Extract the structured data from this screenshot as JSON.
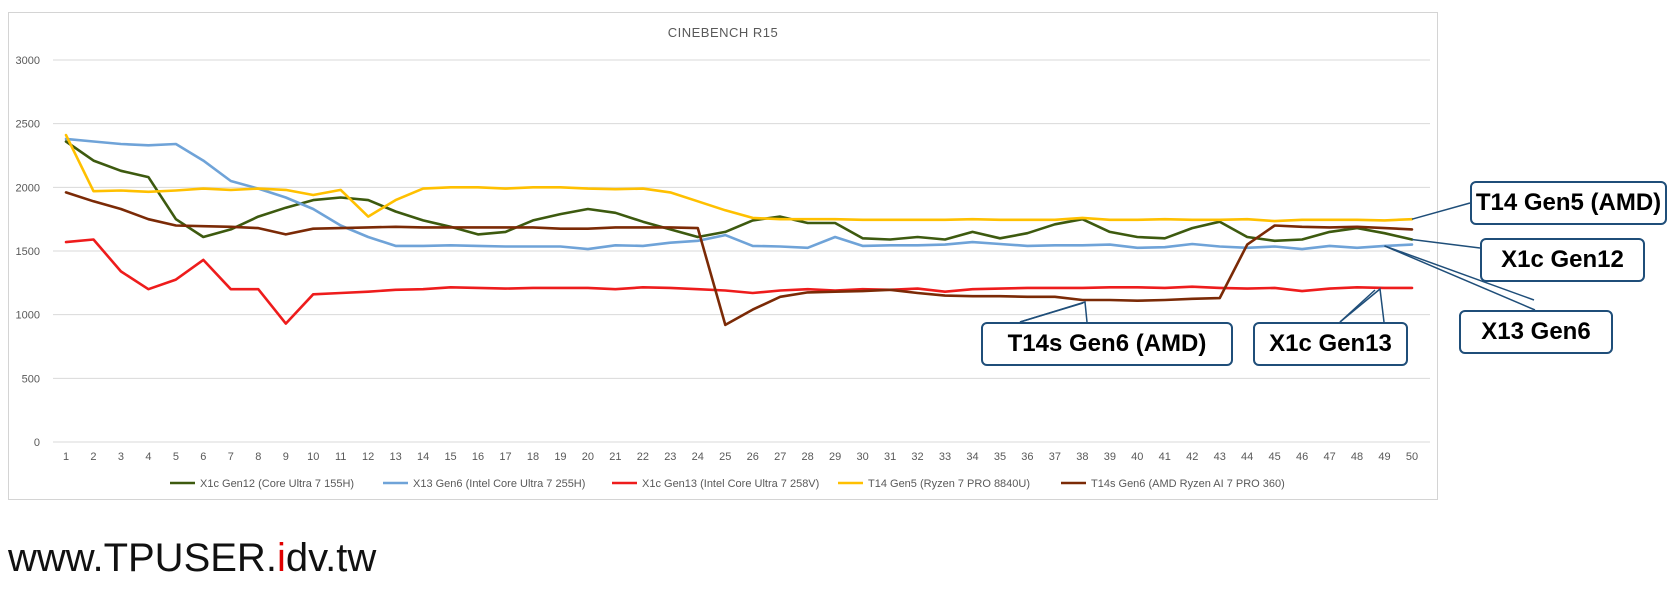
{
  "chart_data": {
    "type": "line",
    "title": "CINEBENCH R15",
    "xlabel": "",
    "ylabel": "",
    "ylim": [
      0,
      3000
    ],
    "yticks": [
      0,
      500,
      1000,
      1500,
      2000,
      2500,
      3000
    ],
    "x": [
      1,
      2,
      3,
      4,
      5,
      6,
      7,
      8,
      9,
      10,
      11,
      12,
      13,
      14,
      15,
      16,
      17,
      18,
      19,
      20,
      21,
      22,
      23,
      24,
      25,
      26,
      27,
      28,
      29,
      30,
      31,
      32,
      33,
      34,
      35,
      36,
      37,
      38,
      39,
      40,
      41,
      42,
      43,
      44,
      45,
      46,
      47,
      48,
      49,
      50
    ],
    "grid": true,
    "legend_position": "bottom",
    "series": [
      {
        "name": "X1c Gen12 (Core Ultra 7 155H)",
        "color": "#3d5a0f",
        "values": [
          2360,
          2210,
          2130,
          2080,
          1750,
          1610,
          1670,
          1770,
          1840,
          1900,
          1920,
          1900,
          1810,
          1740,
          1690,
          1630,
          1650,
          1740,
          1790,
          1830,
          1800,
          1730,
          1670,
          1610,
          1650,
          1740,
          1770,
          1720,
          1720,
          1600,
          1590,
          1610,
          1590,
          1650,
          1600,
          1640,
          1710,
          1750,
          1650,
          1610,
          1600,
          1680,
          1730,
          1610,
          1580,
          1590,
          1650,
          1680,
          1640,
          1590
        ]
      },
      {
        "name": "X13 Gen6 (Intel Core Ultra 7 255H)",
        "color": "#6fa3d8",
        "values": [
          2380,
          2360,
          2340,
          2330,
          2340,
          2210,
          2050,
          1990,
          1920,
          1830,
          1700,
          1610,
          1540,
          1540,
          1545,
          1540,
          1535,
          1535,
          1535,
          1515,
          1545,
          1540,
          1565,
          1580,
          1625,
          1540,
          1535,
          1525,
          1610,
          1540,
          1545,
          1545,
          1550,
          1570,
          1555,
          1540,
          1545,
          1545,
          1550,
          1525,
          1530,
          1555,
          1535,
          1525,
          1535,
          1515,
          1540,
          1525,
          1540,
          1550
        ]
      },
      {
        "name": "X1c Gen13 (Intel Core Ultra 7 258V)",
        "color": "#ee1c1c",
        "values": [
          1570,
          1590,
          1340,
          1200,
          1275,
          1430,
          1200,
          1200,
          930,
          1160,
          1170,
          1180,
          1195,
          1200,
          1215,
          1210,
          1205,
          1210,
          1210,
          1210,
          1200,
          1215,
          1210,
          1200,
          1190,
          1170,
          1190,
          1200,
          1190,
          1200,
          1195,
          1205,
          1180,
          1200,
          1205,
          1210,
          1210,
          1210,
          1215,
          1215,
          1210,
          1220,
          1210,
          1205,
          1210,
          1185,
          1205,
          1215,
          1210,
          1210
        ]
      },
      {
        "name": "T14 Gen5 (Ryzen 7 PRO 8840U)",
        "color": "#ffc000",
        "values": [
          2410,
          1970,
          1975,
          1965,
          1975,
          1990,
          1980,
          1990,
          1980,
          1940,
          1980,
          1770,
          1900,
          1990,
          2000,
          2000,
          1990,
          2000,
          2000,
          1990,
          1985,
          1990,
          1960,
          1890,
          1820,
          1760,
          1750,
          1750,
          1750,
          1745,
          1745,
          1745,
          1745,
          1750,
          1745,
          1745,
          1745,
          1760,
          1745,
          1745,
          1750,
          1745,
          1745,
          1750,
          1735,
          1745,
          1745,
          1745,
          1740,
          1750
        ]
      },
      {
        "name": "T14s Gen6 (AMD Ryzen AI 7 PRO 360)",
        "color": "#7b2a06",
        "values": [
          1960,
          1890,
          1830,
          1750,
          1700,
          1695,
          1690,
          1680,
          1630,
          1675,
          1680,
          1685,
          1690,
          1685,
          1685,
          1685,
          1685,
          1685,
          1675,
          1675,
          1685,
          1685,
          1685,
          1680,
          920,
          1040,
          1140,
          1175,
          1180,
          1185,
          1195,
          1170,
          1150,
          1145,
          1145,
          1140,
          1140,
          1115,
          1115,
          1110,
          1115,
          1125,
          1130,
          1550,
          1700,
          1690,
          1685,
          1690,
          1680,
          1670
        ]
      }
    ]
  },
  "callouts": {
    "t14_gen5": "T14 Gen5 (AMD)",
    "x1c_gen12": "X1c Gen12",
    "x13_gen6": "X13 Gen6",
    "t14s_gen6": "T14s Gen6 (AMD)",
    "x1c_gen13": "X1c Gen13"
  },
  "watermark": {
    "part1": "www.TPUSER.",
    "part2": "i",
    "part3": "dv.tw"
  }
}
